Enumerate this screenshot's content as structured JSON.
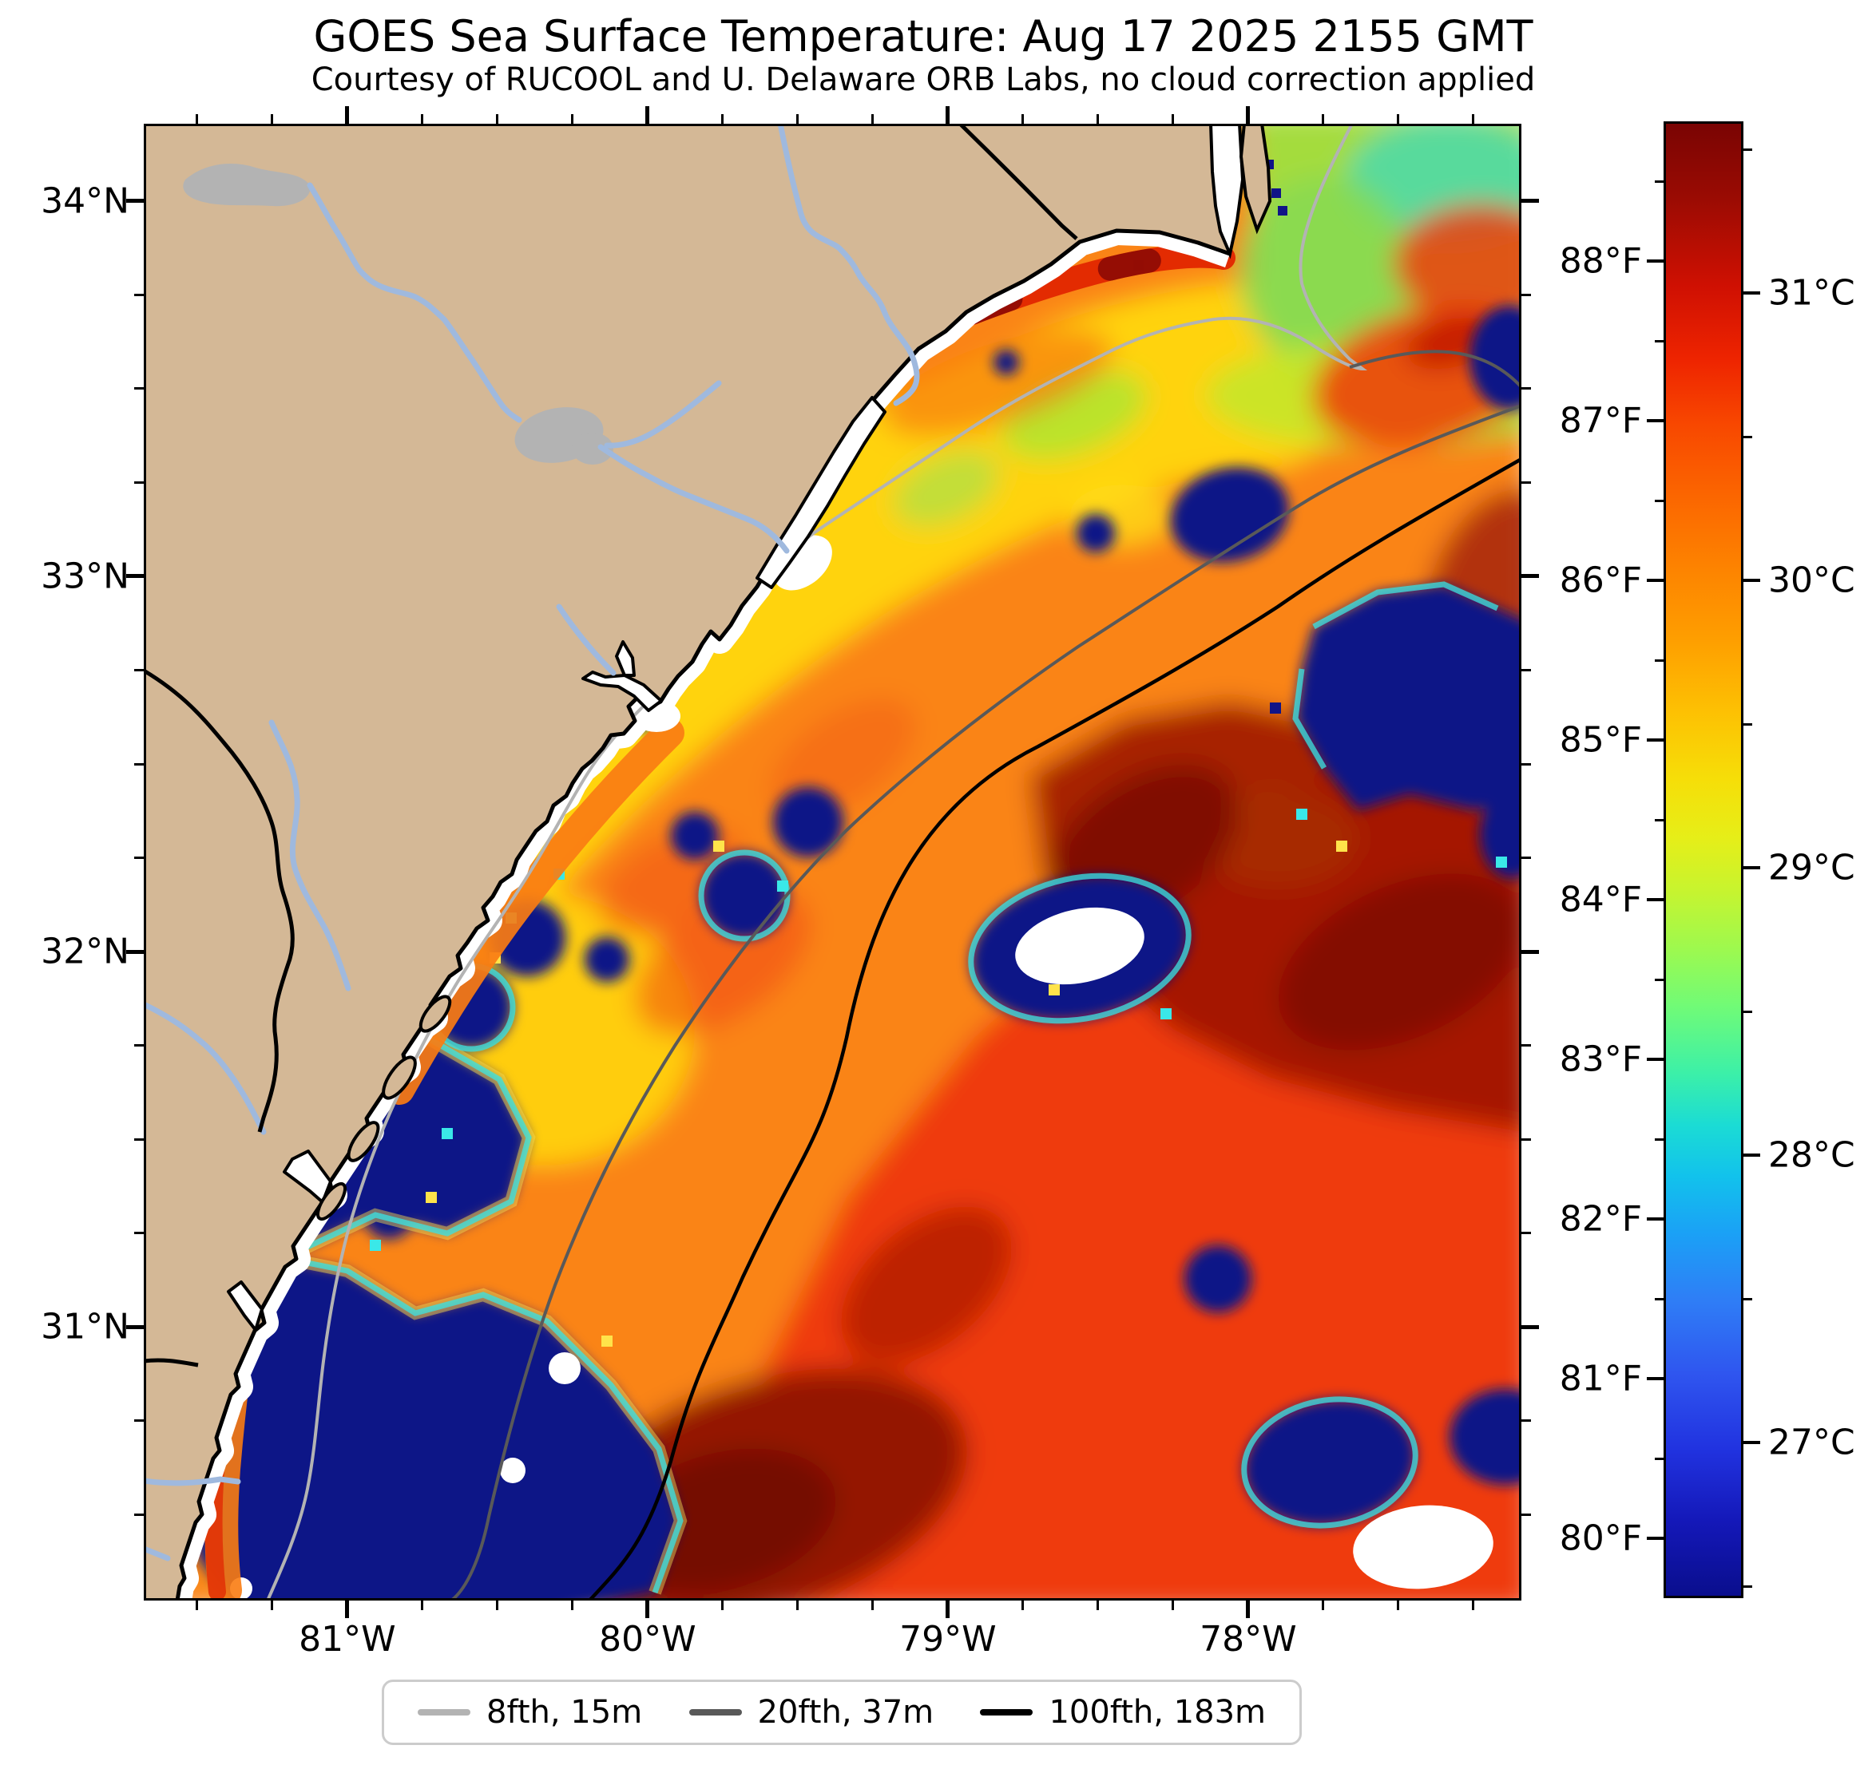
{
  "title": "GOES Sea Surface Temperature: Aug 17 2025 2155 GMT",
  "subtitle": "Courtesy of RUCOOL and U. Delaware ORB Labs, no cloud correction applied",
  "chart_data": {
    "type": "heatmap",
    "title": "GOES Sea Surface Temperature: Aug 17 2025 2155 GMT",
    "subtitle": "Courtesy of RUCOOL and U. Delaware ORB Labs, no cloud correction applied",
    "x_axis": {
      "label": "longitude",
      "ticks": [
        {
          "label": "81°W",
          "value": 81
        },
        {
          "label": "80°W",
          "value": 80
        },
        {
          "label": "79°W",
          "value": 79
        },
        {
          "label": "78°W",
          "value": 78
        }
      ],
      "left_lon": 81.678,
      "right_lon": 77.09,
      "minor_step": 0.25
    },
    "y_axis": {
      "label": "latitude",
      "ticks": [
        {
          "label": "34°N",
          "value": 34
        },
        {
          "label": "33°N",
          "value": 33
        },
        {
          "label": "32°N",
          "value": 32
        },
        {
          "label": "31°N",
          "value": 31
        }
      ],
      "top_lat": 34.206,
      "bottom_lat": 30.271,
      "minor_step": 0.25
    },
    "colorbar": {
      "units_left": "°F",
      "units_right": "°C",
      "top_f": 88.875,
      "bottom_f": 79.625,
      "fahrenheit_ticks": [
        {
          "label": "88°F",
          "value": 88
        },
        {
          "label": "87°F",
          "value": 87
        },
        {
          "label": "86°F",
          "value": 86
        },
        {
          "label": "85°F",
          "value": 85
        },
        {
          "label": "84°F",
          "value": 84
        },
        {
          "label": "83°F",
          "value": 83
        },
        {
          "label": "82°F",
          "value": 82
        },
        {
          "label": "81°F",
          "value": 81
        },
        {
          "label": "80°F",
          "value": 80
        }
      ],
      "celsius_ticks": [
        {
          "label": "31°C",
          "value": 31
        },
        {
          "label": "30°C",
          "value": 30
        },
        {
          "label": "29°C",
          "value": 29
        },
        {
          "label": "28°C",
          "value": 28
        },
        {
          "label": "27°C",
          "value": 27
        }
      ],
      "minor_step_f": 0.5,
      "minor_step_c": 0.5,
      "colormap": "jet",
      "gradient": [
        {
          "pos": 0.0,
          "color": "#7a0403"
        },
        {
          "pos": 0.05,
          "color": "#9a0b03"
        },
        {
          "pos": 0.11,
          "color": "#cf1002"
        },
        {
          "pos": 0.16,
          "color": "#ee2400"
        },
        {
          "pos": 0.205,
          "color": "#f84800"
        },
        {
          "pos": 0.25,
          "color": "#fb6400"
        },
        {
          "pos": 0.3,
          "color": "#fd8200"
        },
        {
          "pos": 0.35,
          "color": "#fe9e00"
        },
        {
          "pos": 0.4,
          "color": "#fdc103"
        },
        {
          "pos": 0.445,
          "color": "#f6de08"
        },
        {
          "pos": 0.485,
          "color": "#e6ee18"
        },
        {
          "pos": 0.52,
          "color": "#c8f42e"
        },
        {
          "pos": 0.56,
          "color": "#9ef94e"
        },
        {
          "pos": 0.6,
          "color": "#70fb77"
        },
        {
          "pos": 0.645,
          "color": "#3cf0a8"
        },
        {
          "pos": 0.68,
          "color": "#1bdcd4"
        },
        {
          "pos": 0.715,
          "color": "#12c2ec"
        },
        {
          "pos": 0.755,
          "color": "#1ba0f6"
        },
        {
          "pos": 0.8,
          "color": "#2f7df6"
        },
        {
          "pos": 0.85,
          "color": "#2f55ef"
        },
        {
          "pos": 0.9,
          "color": "#2133e0"
        },
        {
          "pos": 0.95,
          "color": "#1418b8"
        },
        {
          "pos": 1.0,
          "color": "#0a0e8d"
        }
      ]
    },
    "legend": {
      "items": [
        {
          "label": "8fth, 15m",
          "color": "#b3b3b3"
        },
        {
          "label": "20fth, 37m",
          "color": "#595959"
        },
        {
          "label": "100fth, 183m",
          "color": "#000000"
        }
      ]
    },
    "map_colors": {
      "land": "#d4b896",
      "river": "#9fb9de",
      "lake": "#b3b3b3",
      "no_data": "#ffffff",
      "cloud_mask": "#101487",
      "ocean_base": "#fa8414"
    },
    "features": [
      "Warm Gulf Stream water (87-89°F, dark red) seaward of the 100-fathom contour",
      "Mid-shelf water 85-87°F (orange) between the 8- and 100-fathom contours",
      "Cooler 84-86°F band (yellow/green) on the inner shelf from Charleston toward Cape Fear",
      "Coolest surface water 82-84°F (green/teal) in Onslow Bay northeast of Cape Fear",
      "Dark navy patches are cloud-contaminated retrievals; white areas are no-data",
      "Tan area is land (SC/GA/NC) with gray lakes and light-blue rivers; black lines on land are state borders"
    ]
  }
}
